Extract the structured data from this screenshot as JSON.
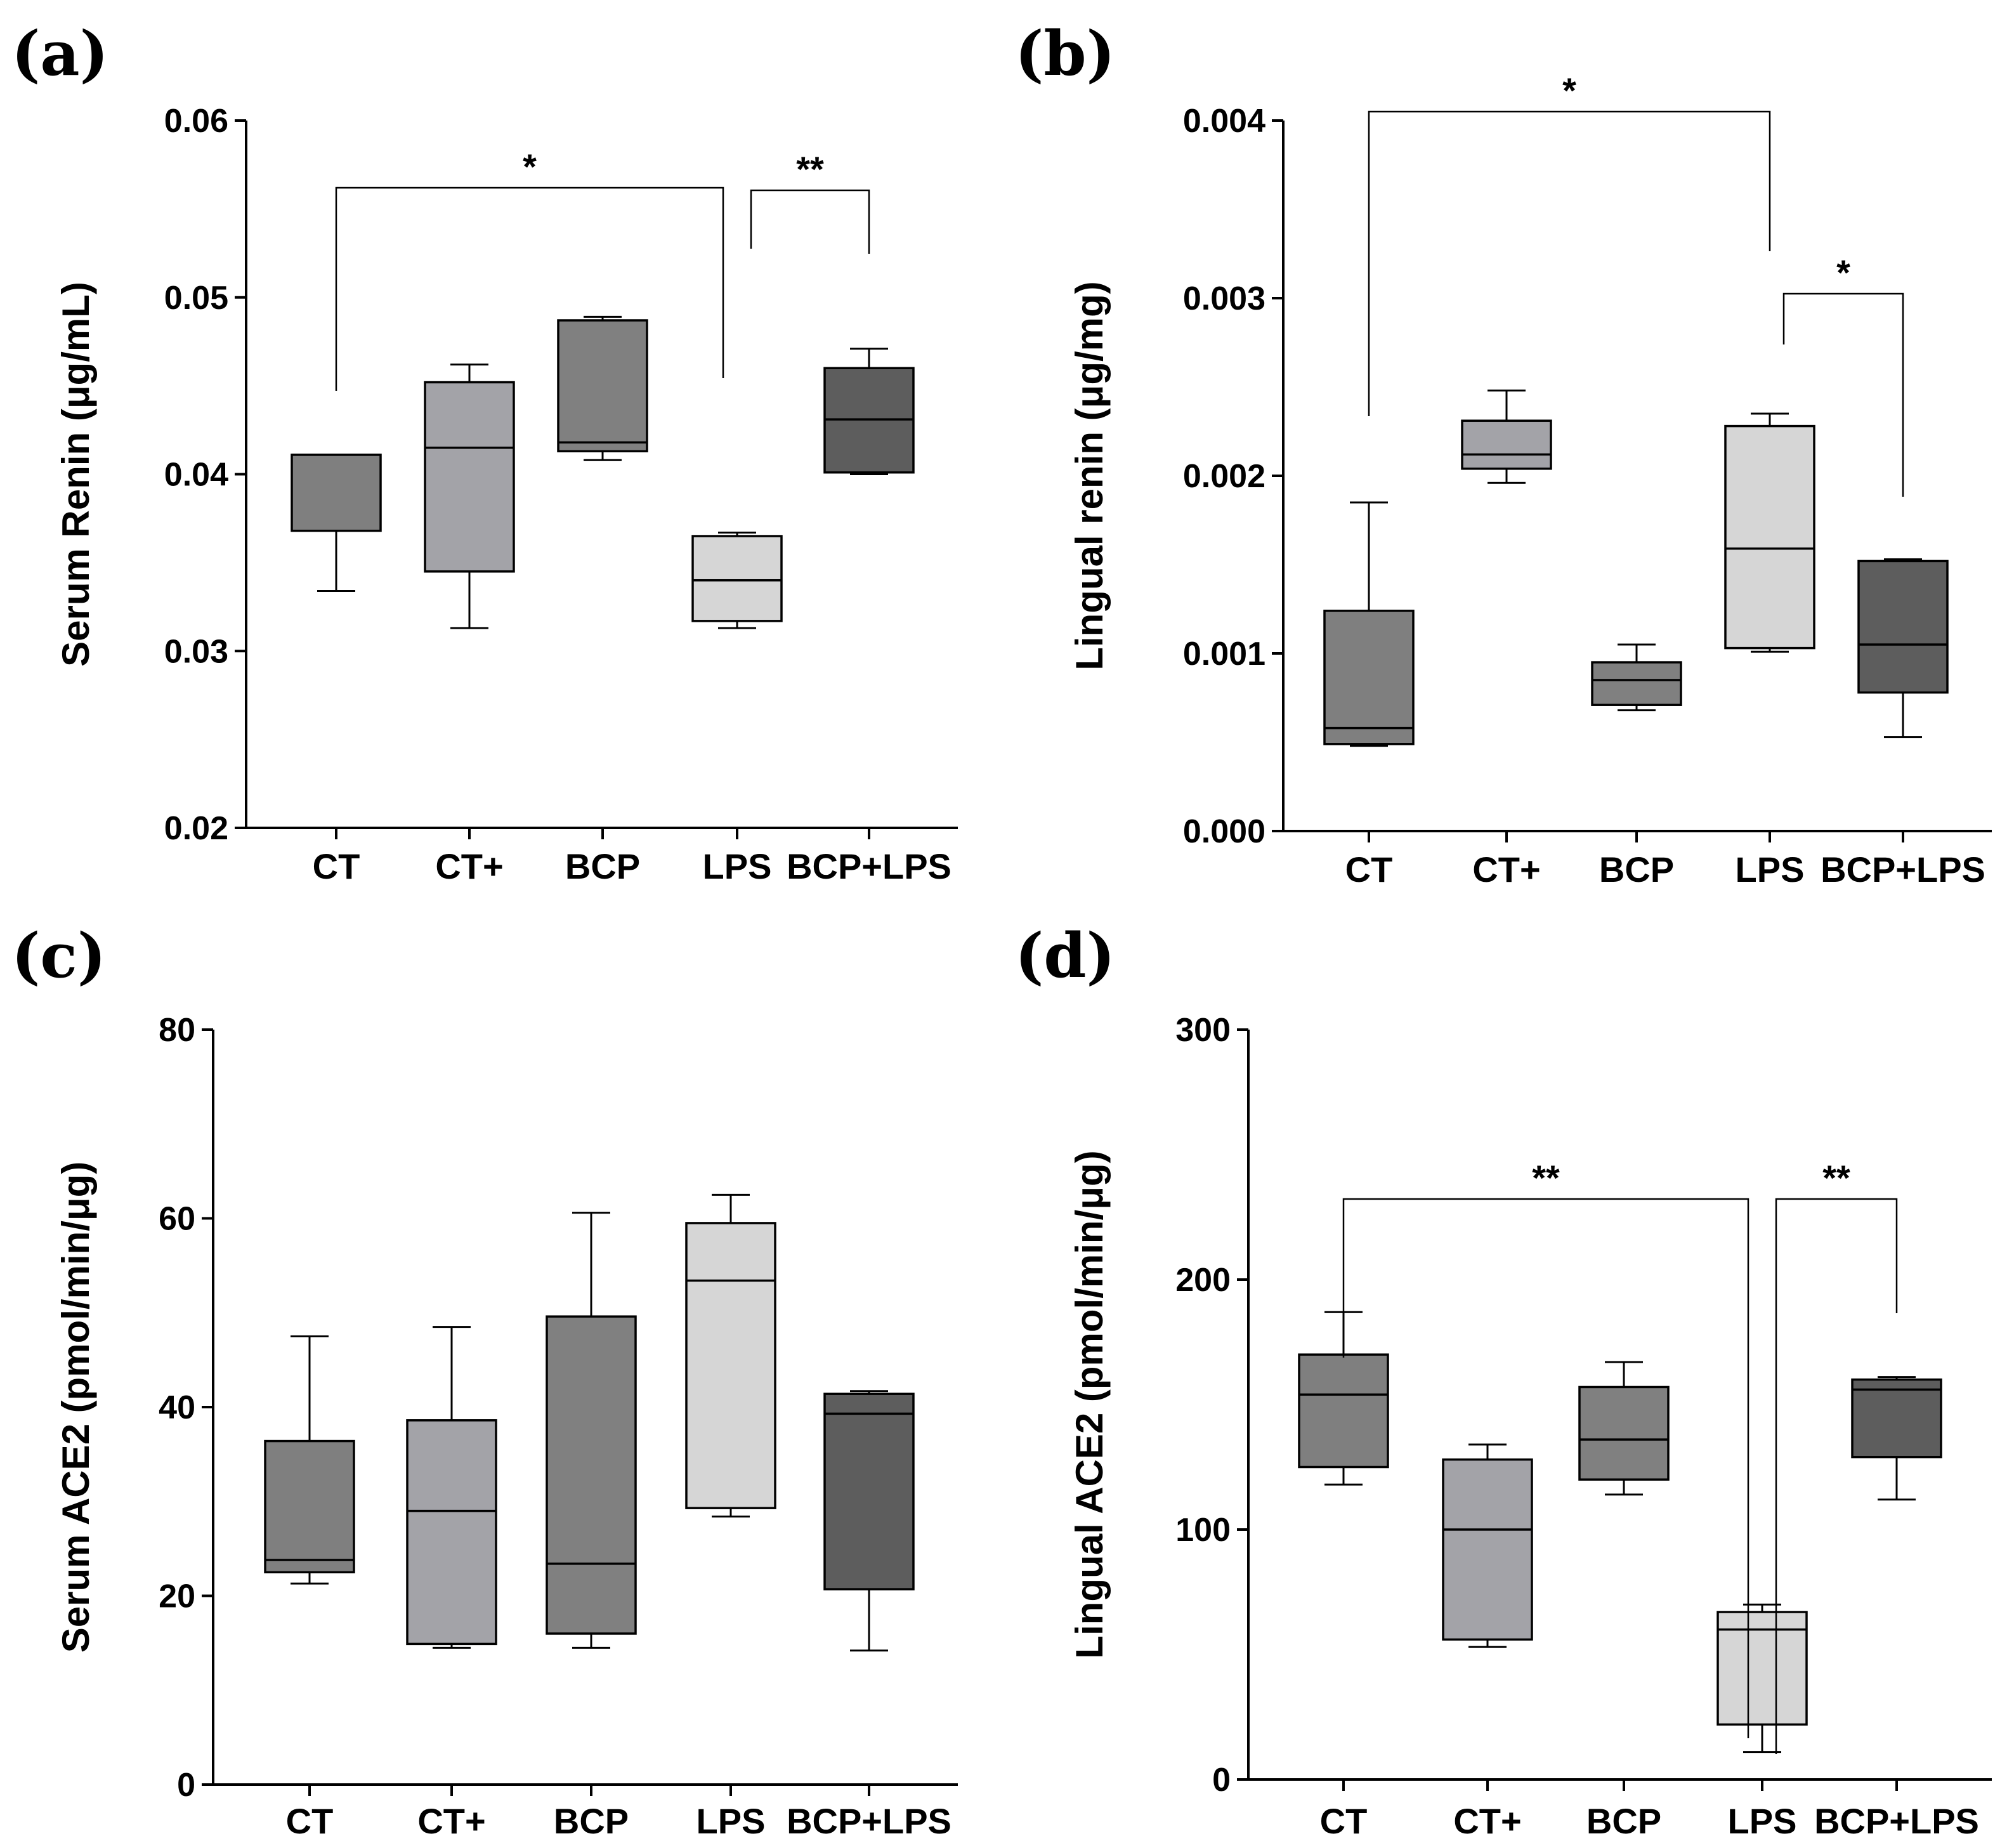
{
  "colors": {
    "CT": "#7f7f7f",
    "CT+": "#a3a3a8",
    "BCP": "#808080",
    "LPS": "#d6d6d6",
    "BCP+LPS": "#5d5d5d"
  },
  "chart_data": [
    {
      "type": "box",
      "panel": "(a)",
      "ylabel": "Serum Renin (μg/mL)",
      "ylim": [
        0.02,
        0.06
      ],
      "yticks": [
        "0.02",
        "0.03",
        "0.04",
        "0.05",
        "0.06"
      ],
      "categories": [
        "CT",
        "CT+",
        "BCP",
        "LPS",
        "BCP+LPS"
      ],
      "boxes": [
        {
          "min": 0.0334,
          "q1": 0.0368,
          "median": 0.0411,
          "q3": 0.0411,
          "max": 0.0411
        },
        {
          "min": 0.0313,
          "q1": 0.0345,
          "median": 0.0415,
          "q3": 0.0452,
          "max": 0.0462
        },
        {
          "min": 0.0408,
          "q1": 0.0413,
          "median": 0.0418,
          "q3": 0.0487,
          "max": 0.0489
        },
        {
          "min": 0.0313,
          "q1": 0.0317,
          "median": 0.034,
          "q3": 0.0365,
          "max": 0.0367
        },
        {
          "min": 0.04,
          "q1": 0.0401,
          "median": 0.0431,
          "q3": 0.046,
          "max": 0.0471
        }
      ],
      "significance": [
        {
          "from": 0,
          "to": 3,
          "label": "*"
        },
        {
          "from": 3,
          "to": 4,
          "label": "**"
        }
      ]
    },
    {
      "type": "box",
      "panel": "(b)",
      "ylabel": "Lingual renin (μg/mg)",
      "ylim": [
        0,
        0.004
      ],
      "yticks": [
        "0.000",
        "0.001",
        "0.002",
        "0.003",
        "0.004"
      ],
      "categories": [
        "CT",
        "CT+",
        "BCP",
        "LPS",
        "BCP+LPS"
      ],
      "boxes": [
        {
          "min": 0.00048,
          "q1": 0.00049,
          "median": 0.00058,
          "q3": 0.00124,
          "max": 0.00185
        },
        {
          "min": 0.00196,
          "q1": 0.00204,
          "median": 0.00212,
          "q3": 0.00231,
          "max": 0.00248
        },
        {
          "min": 0.00068,
          "q1": 0.00071,
          "median": 0.00085,
          "q3": 0.00095,
          "max": 0.00105
        },
        {
          "min": 0.00101,
          "q1": 0.00103,
          "median": 0.00159,
          "q3": 0.00228,
          "max": 0.00235
        },
        {
          "min": 0.00053,
          "q1": 0.00078,
          "median": 0.00105,
          "q3": 0.00152,
          "max": 0.00153
        }
      ],
      "significance": [
        {
          "from": 0,
          "to": 3,
          "label": "*"
        },
        {
          "from": 3,
          "to": 4,
          "label": "*"
        }
      ]
    },
    {
      "type": "box",
      "panel": "(c)",
      "ylabel": "Serum ACE2 (pmol/min/μg)",
      "ylim": [
        0,
        80
      ],
      "yticks": [
        "0",
        "20",
        "40",
        "60",
        "80"
      ],
      "categories": [
        "CT",
        "CT+",
        "BCP",
        "LPS",
        "BCP+LPS"
      ],
      "boxes": [
        {
          "min": 21.3,
          "q1": 22.5,
          "median": 23.8,
          "q3": 36.4,
          "max": 47.5
        },
        {
          "min": 14.5,
          "q1": 14.9,
          "median": 29.0,
          "q3": 38.6,
          "max": 48.5
        },
        {
          "min": 14.5,
          "q1": 16.0,
          "median": 23.4,
          "q3": 49.6,
          "max": 60.6
        },
        {
          "min": 28.4,
          "q1": 29.3,
          "median": 53.4,
          "q3": 59.5,
          "max": 62.5
        },
        {
          "min": 14.2,
          "q1": 20.7,
          "median": 39.3,
          "q3": 41.4,
          "max": 41.7
        }
      ],
      "significance": []
    },
    {
      "type": "box",
      "panel": "(d)",
      "ylabel": "Lingual ACE2 (pmol/min/μg)",
      "ylim": [
        0,
        300
      ],
      "yticks": [
        "0",
        "100",
        "200",
        "300"
      ],
      "categories": [
        "CT",
        "CT+",
        "BCP",
        "LPS",
        "BCP+LPS"
      ],
      "boxes": [
        {
          "min": 118,
          "q1": 125,
          "median": 154,
          "q3": 170,
          "max": 187
        },
        {
          "min": 53,
          "q1": 56,
          "median": 100,
          "q3": 128,
          "max": 134
        },
        {
          "min": 114,
          "q1": 120,
          "median": 136,
          "q3": 157,
          "max": 167
        },
        {
          "min": 11,
          "q1": 22,
          "median": 60,
          "q3": 67,
          "max": 70
        },
        {
          "min": 112,
          "q1": 129,
          "median": 156,
          "q3": 160,
          "max": 161
        }
      ],
      "significance": [
        {
          "from": 0,
          "to": 3,
          "label": "**"
        },
        {
          "from": 3,
          "to": 4,
          "label": "**"
        }
      ]
    }
  ]
}
